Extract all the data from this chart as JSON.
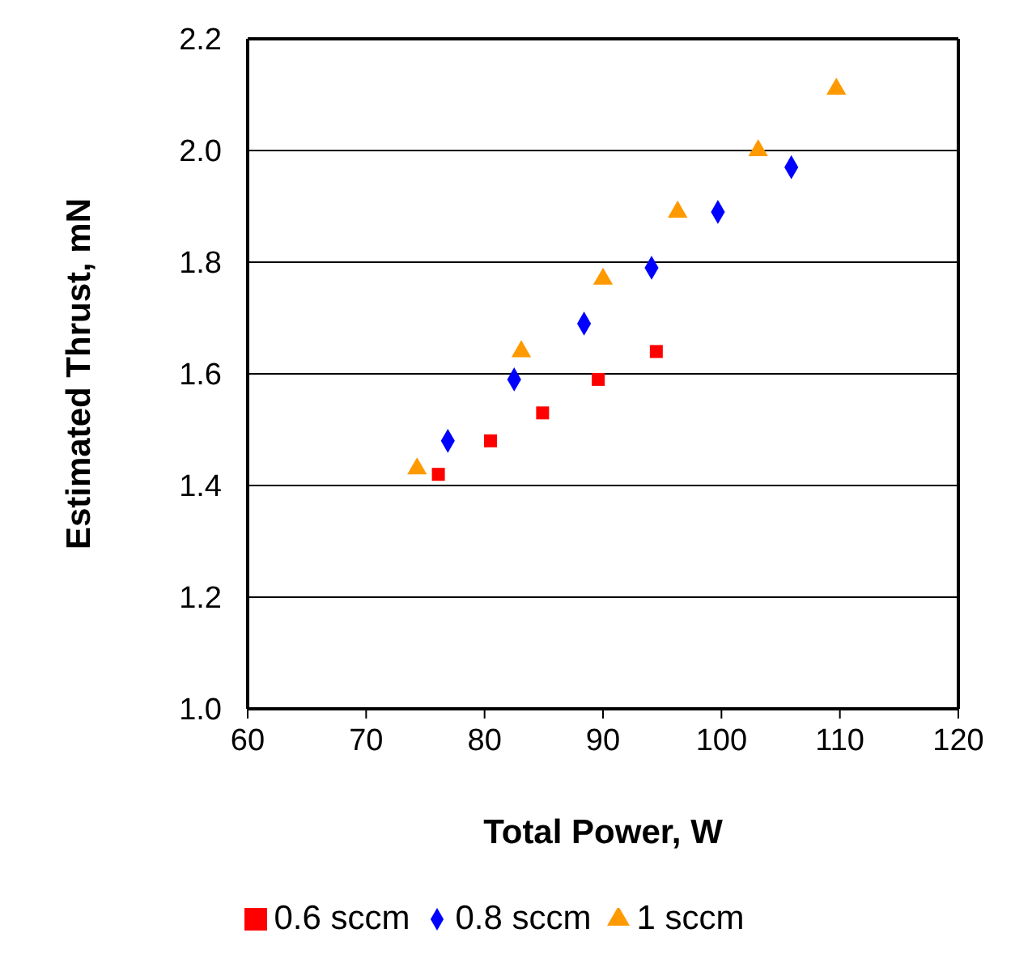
{
  "chart_data": {
    "type": "scatter",
    "xlabel": "Total Power, W",
    "ylabel": "Estimated Thrust, mN",
    "xlim": [
      60,
      120
    ],
    "xticks": [
      60,
      70,
      80,
      90,
      100,
      110,
      120
    ],
    "ylim": [
      1.0,
      2.2
    ],
    "yticks": [
      {
        "value": 1.0,
        "label": "1.0"
      },
      {
        "value": 1.2,
        "label": "1.2"
      },
      {
        "value": 1.4,
        "label": "1.4"
      },
      {
        "value": 1.6,
        "label": "1.6"
      },
      {
        "value": 1.8,
        "label": "1.8"
      },
      {
        "value": 2.0,
        "label": "2.0"
      },
      {
        "value": 2.2,
        "label": "2.2"
      }
    ],
    "grid": "y",
    "legend": "bottom",
    "series": [
      {
        "name": "0.6 sccm",
        "color": "#ff0000",
        "marker": "square",
        "x": [
          76.1,
          80.5,
          84.9,
          89.6,
          94.5
        ],
        "values": [
          1.42,
          1.48,
          1.53,
          1.59,
          1.64
        ]
      },
      {
        "name": "0.8 sccm",
        "color": "#0000ff",
        "marker": "diamond",
        "x": [
          76.9,
          82.5,
          88.4,
          94.1,
          99.7,
          105.9
        ],
        "values": [
          1.48,
          1.59,
          1.69,
          1.79,
          1.89,
          1.97
        ]
      },
      {
        "name": "1 sccm",
        "color": "#ff9900",
        "marker": "triangle",
        "x": [
          74.3,
          83.1,
          90.0,
          96.3,
          103.1,
          109.7
        ],
        "values": [
          1.43,
          1.64,
          1.77,
          1.89,
          2.0,
          2.11
        ]
      }
    ]
  }
}
